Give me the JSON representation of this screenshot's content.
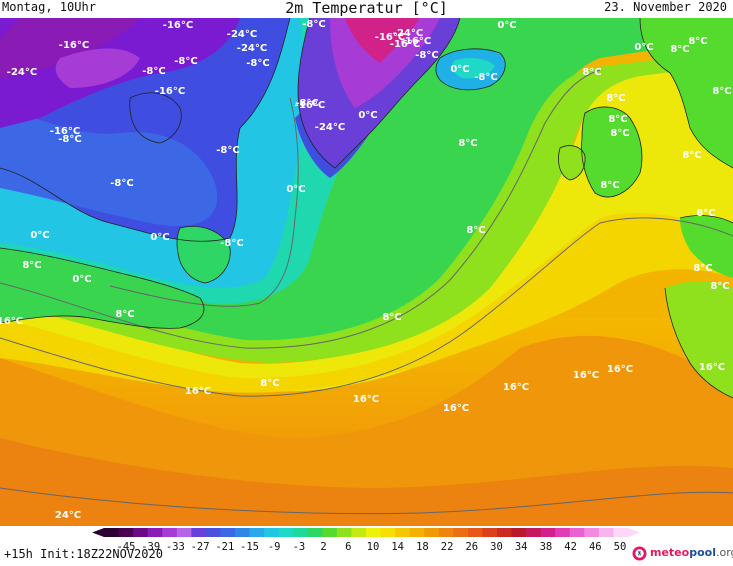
{
  "header": {
    "left": "Montag, 10Uhr",
    "title": "2m Temperatur [°C]",
    "date": "23. November 2020"
  },
  "footer": {
    "init": "+15h  Init:18Z22NOV2020",
    "logo": {
      "part1": "meteo",
      "part2": "pool",
      "part3": ".org",
      "mark": "M"
    }
  },
  "colorbar": {
    "ticks": [
      "-45",
      "-39",
      "-33",
      "-27",
      "-21",
      "-15",
      "-9",
      "-3",
      "2",
      "6",
      "10",
      "14",
      "18",
      "22",
      "26",
      "30",
      "34",
      "38",
      "42",
      "46",
      "50"
    ],
    "colors": [
      "#2d0033",
      "#4a0052",
      "#6a0a86",
      "#8a1bb5",
      "#a73bd6",
      "#b566e6",
      "#6a3fd8",
      "#4b4fe0",
      "#3c68e6",
      "#2e87e8",
      "#29a8ea",
      "#22c6e4",
      "#1fd8c6",
      "#1fd89c",
      "#2ed665",
      "#55da2e",
      "#8ee11c",
      "#c3ea12",
      "#eef208",
      "#f7de04",
      "#f5c700",
      "#f3b200",
      "#f29a06",
      "#ef830e",
      "#ec6e14",
      "#e65818",
      "#d9401c",
      "#c92a22",
      "#b81a2a",
      "#c21a5a",
      "#d1228a",
      "#e03cb6",
      "#ea62d2",
      "#f28ae2",
      "#f8b4ee",
      "#fcd8f6"
    ]
  },
  "map": {
    "labels": [
      {
        "text": "-16°C"
      },
      {
        "text": "-24°C"
      },
      {
        "text": "-16°C"
      },
      {
        "text": "-24°C"
      },
      {
        "text": "-24°C"
      },
      {
        "text": "-16°C"
      },
      {
        "text": "-8°C"
      },
      {
        "text": "-8°C"
      },
      {
        "text": "-8°C"
      },
      {
        "text": "-16°C"
      },
      {
        "text": "-16°C"
      },
      {
        "text": "-8°C"
      },
      {
        "text": "-8°C"
      },
      {
        "text": "-16°C"
      },
      {
        "text": "-24°C"
      },
      {
        "text": "-8°C"
      },
      {
        "text": "0°C"
      },
      {
        "text": "-16°C"
      },
      {
        "text": "-24°C"
      },
      {
        "text": "-16°C"
      },
      {
        "text": "-8°C"
      },
      {
        "text": "0°C"
      },
      {
        "text": "-8°C"
      },
      {
        "text": "0°C"
      },
      {
        "text": "8°C"
      },
      {
        "text": "8°C"
      },
      {
        "text": "8°C"
      },
      {
        "text": "0°C"
      },
      {
        "text": "8°C"
      },
      {
        "text": "8°C"
      },
      {
        "text": "8°C"
      },
      {
        "text": "-8°C"
      },
      {
        "text": "0°C"
      },
      {
        "text": "-8°C"
      },
      {
        "text": "0°C"
      },
      {
        "text": "-8°C"
      },
      {
        "text": "8°C"
      },
      {
        "text": "0°C"
      },
      {
        "text": "8°C"
      },
      {
        "text": "16°C"
      },
      {
        "text": "8°C"
      },
      {
        "text": "0°C"
      },
      {
        "text": "8°C"
      },
      {
        "text": "16°C"
      },
      {
        "text": "8°C"
      },
      {
        "text": "16°C"
      },
      {
        "text": "16°C"
      },
      {
        "text": "16°C"
      },
      {
        "text": "16°C"
      },
      {
        "text": "16°C"
      },
      {
        "text": "16°C"
      },
      {
        "text": "24°C"
      },
      {
        "text": "8°C"
      },
      {
        "text": "8°C"
      },
      {
        "text": "8°C"
      },
      {
        "text": "8°C"
      },
      {
        "text": "8°C"
      },
      {
        "text": "8°C"
      },
      {
        "text": "8°C"
      }
    ]
  }
}
